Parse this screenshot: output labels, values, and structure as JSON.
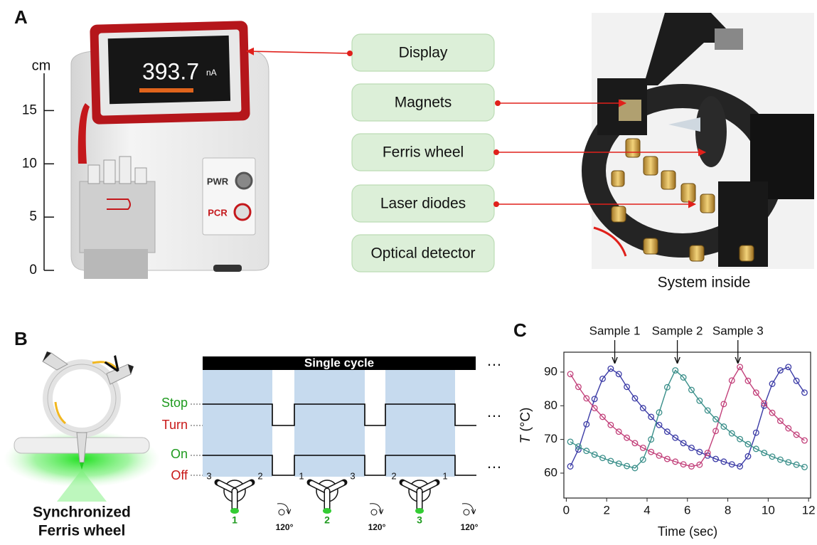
{
  "panel_a": {
    "label": "A",
    "ruler": {
      "unit": "cm",
      "ticks": [
        0,
        5,
        10,
        15
      ],
      "range": [
        0,
        18.5
      ]
    },
    "display_reading": "393.7",
    "display_unit": "nA",
    "buttons": [
      "PWR",
      "PCR"
    ],
    "callouts": [
      "Display",
      "Magnets",
      "Ferris wheel",
      "Laser diodes",
      "Optical detector"
    ],
    "photo_caption": "System inside"
  },
  "panel_b": {
    "label": "B",
    "caption": [
      "Synchronized",
      "Ferris wheel"
    ],
    "cycle_label": "Single cycle",
    "ellipses": [
      "…",
      "…",
      "…"
    ],
    "signal_labels": {
      "stop": "Stop",
      "turn": "Turn",
      "on": "On",
      "off": "Off"
    },
    "rotors": [
      {
        "left": "3",
        "right": "2",
        "bottom": "1"
      },
      {
        "left": "1",
        "right": "3",
        "bottom": "2"
      },
      {
        "left": "2",
        "right": "1",
        "bottom": "3"
      }
    ],
    "rotations": [
      "120°",
      "120°",
      "120°"
    ]
  },
  "panel_c": {
    "label": "C"
  },
  "chart_data": {
    "type": "line",
    "xlabel": "Time (sec)",
    "ylabel_symbol": "T",
    "ylabel_unit": " (°C)",
    "x": [
      0.2,
      0.6,
      1.0,
      1.4,
      1.8,
      2.2,
      2.6,
      3.0,
      3.4,
      3.8,
      4.2,
      4.6,
      5.0,
      5.4,
      5.8,
      6.2,
      6.6,
      7.0,
      7.4,
      7.8,
      8.2,
      8.6,
      9.0,
      9.4,
      9.8,
      10.2,
      10.6,
      11.0,
      11.4,
      11.8
    ],
    "series": [
      {
        "color": "#3b3ba6",
        "values": [
          62,
          67,
          74.5,
          82,
          88,
          91,
          89.4,
          85.6,
          82.2,
          79.3,
          76.7,
          74.3,
          72.3,
          70.5,
          68.9,
          67.5,
          66.3,
          65.2,
          64.2,
          63.4,
          62.6,
          62,
          65,
          72,
          80,
          86.5,
          90.5,
          91.5,
          87.4,
          83.9
        ]
      },
      {
        "color": "#c2407a",
        "values": [
          89.4,
          85.6,
          82.2,
          79.3,
          76.7,
          74.3,
          72.3,
          70.5,
          68.9,
          67.5,
          66.3,
          65.2,
          64.2,
          63.4,
          62.6,
          62,
          62.5,
          66,
          72.5,
          80.5,
          87.5,
          91.5,
          87.4,
          83.9,
          80.7,
          77.9,
          75.5,
          73.3,
          71.4,
          69.7
        ]
      },
      {
        "color": "#3a8f8a",
        "values": [
          69.3,
          67.9,
          66.6,
          65.5,
          64.5,
          63.6,
          62.8,
          62.1,
          61.5,
          64,
          70,
          78,
          85.5,
          90.5,
          88.4,
          84.7,
          81.5,
          78.6,
          76,
          73.8,
          71.8,
          70.1,
          68.6,
          67.2,
          66,
          64.9,
          64,
          63.2,
          62.5,
          61.8
        ]
      }
    ],
    "annotations": [
      {
        "text": "Sample 1",
        "x": 2.4
      },
      {
        "text": "Sample 2",
        "x": 5.5
      },
      {
        "text": "Sample 3",
        "x": 8.5
      }
    ],
    "xlim": [
      -0.12,
      12.1
    ],
    "ylim": [
      52.6,
      95.9
    ],
    "xticks": [
      0,
      2,
      4,
      6,
      8,
      10,
      12
    ],
    "yticks": [
      60,
      70,
      80,
      90
    ]
  }
}
